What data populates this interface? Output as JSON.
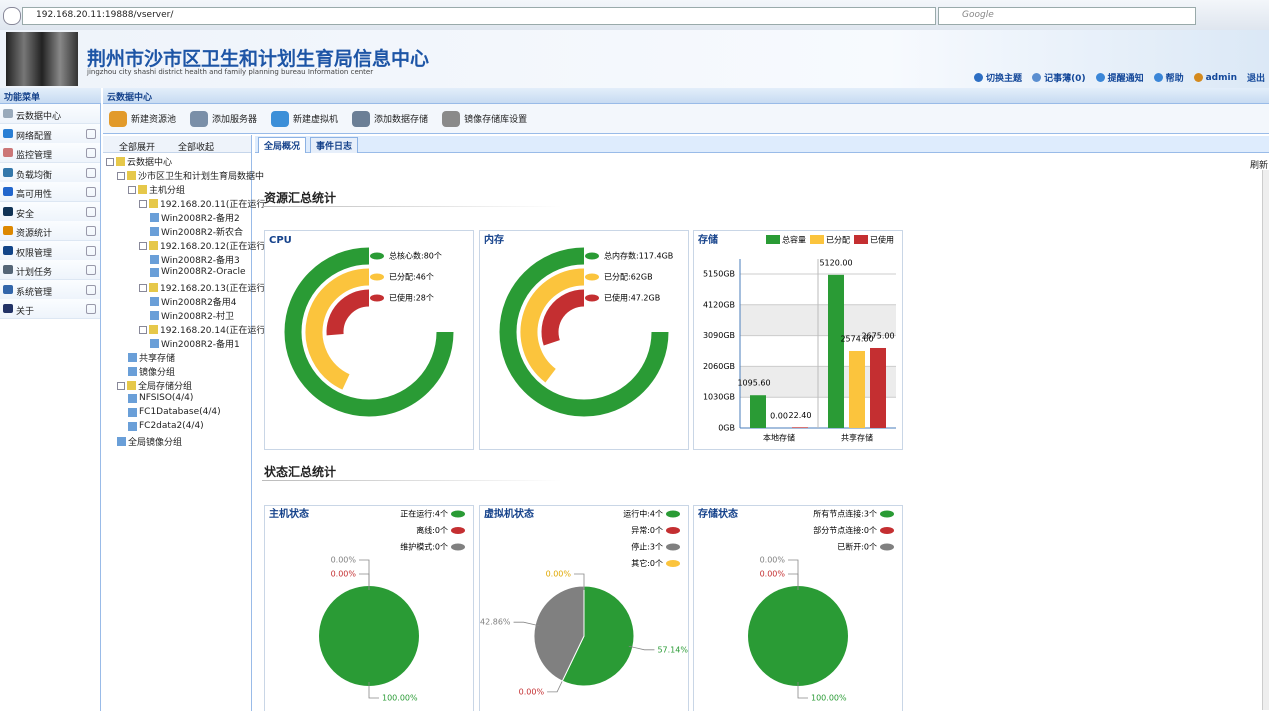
{
  "browser": {
    "url": "192.168.20.11:19888/vserver/",
    "search": "Google"
  },
  "header": {
    "title": "荆州市沙市区卫生和计划生育局信息中心",
    "subtitle": "jingzhou city shashi district health and family planning bureau Information center",
    "links": [
      "切换主题",
      "记事薄(0)",
      "提醒通知",
      "帮助",
      "admin",
      "退出"
    ]
  },
  "menu": {
    "title": "功能菜单",
    "items": [
      "云数据中心",
      "网络配置",
      "监控管理",
      "负载均衡",
      "高可用性",
      "安全",
      "资源统计",
      "权限管理",
      "计划任务",
      "系统管理",
      "关于"
    ]
  },
  "main": {
    "title": "云数据中心"
  },
  "toolbar": [
    "新建资源池",
    "添加服务器",
    "新建虚拟机",
    "添加数据存储",
    "镜像存储库设置"
  ],
  "tree": {
    "expand_all": "全部展开",
    "collapse_all": "全部收起",
    "nodes": [
      {
        "label": "云数据中心",
        "children": [
          {
            "label": "沙市区卫生和计划生育局数据中",
            "children": [
              {
                "label": "主机分组",
                "children": [
                  {
                    "label": "192.168.20.11(正在运行",
                    "children": [
                      {
                        "label": "Win2008R2-备用2"
                      },
                      {
                        "label": "Win2008R2-新农合"
                      }
                    ]
                  },
                  {
                    "label": "192.168.20.12(正在运行",
                    "children": [
                      {
                        "label": "Win2008R2-备用3"
                      },
                      {
                        "label": "Win2008R2-Oracle"
                      }
                    ]
                  },
                  {
                    "label": "192.168.20.13(正在运行",
                    "children": [
                      {
                        "label": "Win2008R2备用4"
                      },
                      {
                        "label": "Win2008R2-村卫"
                      }
                    ]
                  },
                  {
                    "label": "192.168.20.14(正在运行",
                    "children": [
                      {
                        "label": "Win2008R2-备用1"
                      }
                    ]
                  }
                ]
              },
              {
                "label": "共享存储"
              },
              {
                "label": "镜像分组"
              }
            ]
          },
          {
            "label": "全局存储分组",
            "children": [
              {
                "label": "NFSISO(4/4)"
              },
              {
                "label": "FC1Database(4/4)"
              },
              {
                "label": "FC2data2(4/4)"
              }
            ]
          },
          {
            "label": "全局镜像分组"
          }
        ]
      }
    ]
  },
  "tabs": [
    "全局概况",
    "事件日志"
  ],
  "refresh": "刷新",
  "resource_summary": {
    "title": "资源汇总统计",
    "charts": [
      {
        "type": "gauge",
        "title": "CPU",
        "series": [
          {
            "label": "总核心数:80个",
            "value": 80,
            "color": "#2a9b35"
          },
          {
            "label": "已分配:46个",
            "value": 46,
            "color": "#fbc43d"
          },
          {
            "label": "已使用:28个",
            "value": 28,
            "color": "#c42f31"
          }
        ]
      },
      {
        "type": "gauge",
        "title": "内存",
        "series": [
          {
            "label": "总内存数:117.4GB",
            "value": 117.4,
            "color": "#2a9b35"
          },
          {
            "label": "已分配:62GB",
            "value": 62,
            "color": "#fbc43d"
          },
          {
            "label": "已使用:47.2GB",
            "value": 47.2,
            "color": "#c42f31"
          }
        ]
      },
      {
        "type": "bar",
        "title": "存储",
        "categories": [
          "本地存储",
          "共享存储"
        ],
        "series": [
          {
            "name": "总容量",
            "color": "#2a9b35",
            "values": [
              1095.6,
              5120
            ],
            "value_labels": [
              "1095.60",
              "5120.00"
            ]
          },
          {
            "name": "已分配",
            "color": "#fbc43d",
            "values": [
              0,
              2574.6
            ],
            "value_labels": [
              "0.00",
              "2574.60"
            ]
          },
          {
            "name": "已使用",
            "color": "#c42f31",
            "values": [
              22.4,
              2675
            ],
            "value_labels": [
              "22.40",
              "2675.00"
            ]
          }
        ],
        "ylim": [
          0,
          5650
        ],
        "yticks": [
          {
            "value": 0,
            "label": "0GB"
          },
          {
            "value": 1030,
            "label": "1030GB"
          },
          {
            "value": 2060,
            "label": "2060GB"
          },
          {
            "value": 3090,
            "label": "3090GB"
          },
          {
            "value": 4120,
            "label": "4120GB"
          },
          {
            "value": 5150,
            "label": "5150GB"
          }
        ],
        "grid": true
      }
    ]
  },
  "status_summary": {
    "title": "状态汇总统计",
    "charts": [
      {
        "type": "pie",
        "title": "主机状态",
        "series": [
          {
            "label": "正在运行:4个",
            "value": 4,
            "percent_label": "100.00%",
            "color": "#2a9b35"
          },
          {
            "label": "离线:0个",
            "value": 0,
            "percent_label": "0.00%",
            "color": "#c42f31"
          },
          {
            "label": "维护模式:0个",
            "value": 0,
            "percent_label": "0.00%",
            "color": "#808080"
          }
        ]
      },
      {
        "type": "pie",
        "title": "虚拟机状态",
        "series": [
          {
            "label": "运行中:4个",
            "value": 4,
            "percent_label": "57.14%",
            "color": "#2a9b35"
          },
          {
            "label": "异常:0个",
            "value": 0,
            "percent_label": "0.00%",
            "color": "#c42f31"
          },
          {
            "label": "停止:3个",
            "value": 3,
            "percent_label": "42.86%",
            "color": "#808080"
          },
          {
            "label": "其它:0个",
            "value": 0,
            "percent_label": "0.00%",
            "color": "#fbc43d"
          }
        ]
      },
      {
        "type": "pie",
        "title": "存储状态",
        "series": [
          {
            "label": "所有节点连接:3个",
            "value": 3,
            "percent_label": "100.00%",
            "color": "#2a9b35"
          },
          {
            "label": "部分节点连接:0个",
            "value": 0,
            "percent_label": "0.00%",
            "color": "#c42f31"
          },
          {
            "label": "已断开:0个",
            "value": 0,
            "percent_label": "0.00%",
            "color": "#808080"
          }
        ]
      }
    ]
  }
}
